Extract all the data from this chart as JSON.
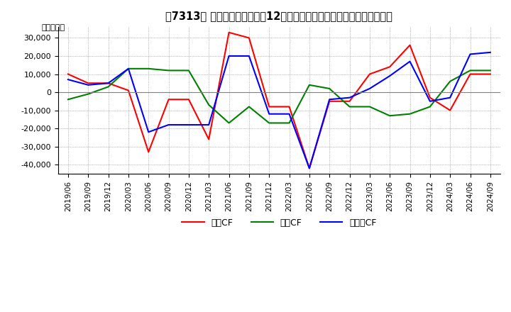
{
  "title": "【7313】 キャッシュフローの12か月移動合計の対前年同期増減額の推移",
  "ylabel": "（百万円）",
  "ylim": [
    -45000,
    36000
  ],
  "yticks": [
    -40000,
    -30000,
    -20000,
    -10000,
    0,
    10000,
    20000,
    30000
  ],
  "legend": [
    "営業CF",
    "投資CF",
    "フリーCF"
  ],
  "colors": {
    "営業CF": "#ff0000",
    "投資CF": "#008000",
    "フリーCF": "#0000ff"
  },
  "dates": [
    "2019/06",
    "2019/09",
    "2019/12",
    "2020/03",
    "2020/06",
    "2020/09",
    "2020/12",
    "2021/03",
    "2021/06",
    "2021/09",
    "2021/12",
    "2022/03",
    "2022/06",
    "2022/09",
    "2022/12",
    "2023/03",
    "2023/06",
    "2023/09",
    "2023/12",
    "2024/03",
    "2024/06",
    "2024/09"
  ],
  "営業CF": [
    10000,
    5000,
    5000,
    1000,
    -33000,
    -4000,
    -4000,
    -26000,
    33000,
    30000,
    -8000,
    -8000,
    -42000,
    -5000,
    -5000,
    10000,
    14000,
    26000,
    -3000,
    -10000,
    10000,
    10000
  ],
  "投資CF": [
    -4000,
    -1000,
    3000,
    13000,
    13000,
    12000,
    12000,
    -7000,
    -17000,
    -8000,
    -17000,
    -17000,
    4000,
    2000,
    -8000,
    -8000,
    -13000,
    -12000,
    -8000,
    6000,
    12000,
    12000
  ],
  "フリーCF": [
    7000,
    4000,
    5000,
    13000,
    -22000,
    -18000,
    -18000,
    -18000,
    20000,
    20000,
    -12000,
    -12000,
    -42000,
    -4000,
    -3000,
    2000,
    9000,
    17000,
    -5000,
    -3000,
    21000,
    22000
  ]
}
